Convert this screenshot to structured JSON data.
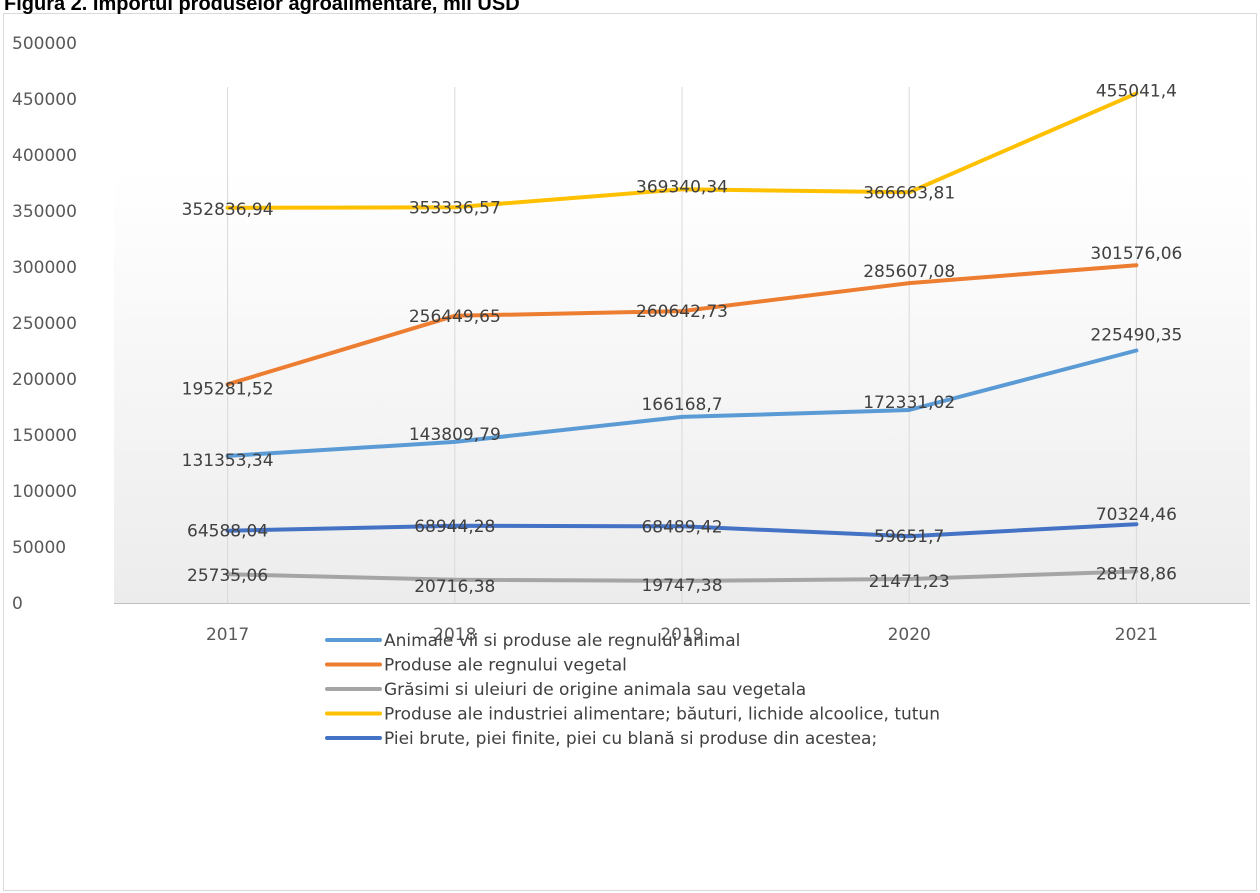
{
  "figure": {
    "title": "Figura 2. Importul produselor agroalimentare, mii USD"
  },
  "chart_data": {
    "type": "line",
    "title": "Figura 2. Importul produselor agroalimentare, mii USD",
    "xlabel": "",
    "ylabel": "",
    "categories": [
      "2017",
      "2018",
      "2019",
      "2020",
      "2021"
    ],
    "ylim": [
      0,
      500000
    ],
    "yticks": [
      "0",
      "50000",
      "100000",
      "150000",
      "200000",
      "250000",
      "300000",
      "350000",
      "400000",
      "450000",
      "500000"
    ],
    "grid": "vertical",
    "legend_position": "bottom",
    "series": [
      {
        "name": "Animale vii si produse ale regnului animal",
        "color": "#5b9bd5",
        "values": [
          131353.34,
          143809.79,
          166168.7,
          172331.02,
          225490.35
        ],
        "labels": [
          "131353,34",
          "143809,79",
          "166168,7",
          "172331,02",
          "225490,35"
        ]
      },
      {
        "name": "Produse ale regnului vegetal",
        "color": "#ed7d31",
        "values": [
          195281.52,
          256449.65,
          260642.73,
          285607.08,
          301576.06
        ],
        "labels": [
          "195281,52",
          "256449,65",
          "260642,73",
          "285607,08",
          "301576,06"
        ]
      },
      {
        "name": "Grăsimi si uleiuri de origine animala sau vegetala",
        "color": "#a5a5a5",
        "values": [
          25735.06,
          20716.38,
          19747.38,
          21471.23,
          28178.86
        ],
        "labels": [
          "25735,06",
          "20716,38",
          "19747,38",
          "21471,23",
          "28178,86"
        ]
      },
      {
        "name": "Produse ale industriei alimentare; băuturi, lichide alcoolice, tutun",
        "color": "#ffc000",
        "values": [
          352836.94,
          353336.57,
          369340.34,
          366663.81,
          455041.4
        ],
        "labels": [
          "352836,94",
          "353336,57",
          "369340,34",
          "366663,81",
          "455041,4"
        ]
      },
      {
        "name": "Piei brute, piei finite, piei cu blană si produse din acestea;",
        "color": "#4472c4",
        "values": [
          64588.04,
          68944.28,
          68489.42,
          59651.7,
          70324.46
        ],
        "labels": [
          "64588,04",
          "68944,28",
          "68489,42",
          "59651,7",
          "70324,46"
        ]
      }
    ]
  }
}
